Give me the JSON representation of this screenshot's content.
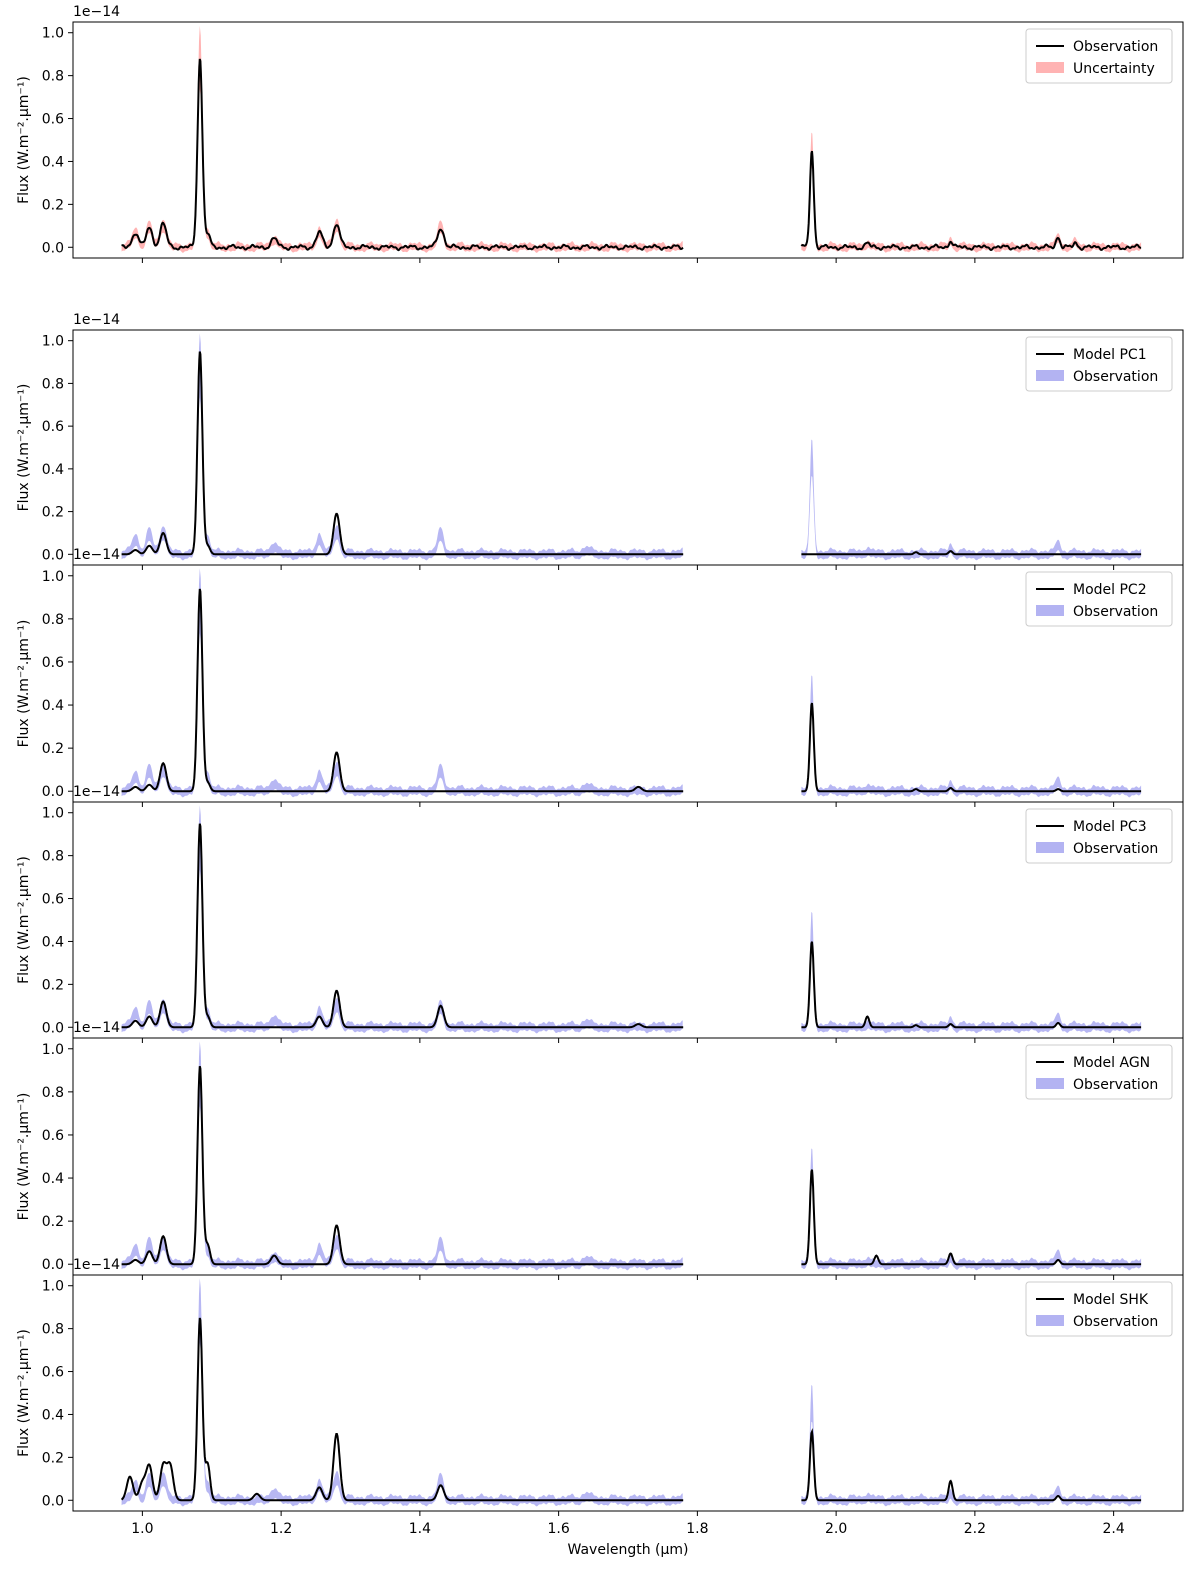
{
  "figure": {
    "x_axis_label": "Wavelength (μm)",
    "y_axis_label": "Flux (W.m⁻².μm⁻¹)",
    "offset_label": "1e−14"
  },
  "chart_data": [
    {
      "type": "line",
      "panel": 1,
      "ylim": [
        -0.05,
        1.05
      ],
      "xlim": [
        0.9,
        2.5
      ],
      "x_ticks": [
        1.0,
        1.2,
        1.4,
        1.6,
        1.8,
        2.0,
        2.2,
        2.4
      ],
      "x_tick_labels_shown": false,
      "y_ticks": [
        0.0,
        0.2,
        0.4,
        0.6,
        0.8,
        1.0
      ],
      "legend_position": "top-right",
      "line": {
        "name": "Observation",
        "color": "#000000",
        "peaks": [
          [
            0.99,
            0.07
          ],
          [
            1.01,
            0.09
          ],
          [
            1.03,
            0.11
          ],
          [
            1.083,
            0.88
          ],
          [
            1.094,
            0.06
          ],
          [
            1.19,
            0.04
          ],
          [
            1.255,
            0.07
          ],
          [
            1.28,
            0.11
          ],
          [
            1.43,
            0.09
          ],
          [
            1.965,
            0.45
          ],
          [
            2.045,
            0.02
          ],
          [
            2.165,
            0.03
          ],
          [
            2.32,
            0.05
          ],
          [
            2.345,
            0.02
          ]
        ]
      },
      "band": {
        "name": "Uncertainty",
        "color": "#ff9999",
        "halfwidth": 0.015
      }
    },
    {
      "type": "line",
      "panel": 2,
      "ylim": [
        -0.05,
        1.05
      ],
      "xlim": [
        0.9,
        2.5
      ],
      "x_ticks": [
        1.0,
        1.2,
        1.4,
        1.6,
        1.8,
        2.0,
        2.2,
        2.4
      ],
      "x_tick_labels_shown": false,
      "y_ticks": [
        0.0,
        0.2,
        0.4,
        0.6,
        0.8,
        1.0
      ],
      "legend_position": "top-right",
      "line": {
        "name": "Model PC1",
        "color": "#000000",
        "peaks": [
          [
            0.99,
            0.02
          ],
          [
            1.01,
            0.04
          ],
          [
            1.03,
            0.1
          ],
          [
            1.083,
            0.95
          ],
          [
            1.094,
            0.04
          ],
          [
            1.28,
            0.19
          ],
          [
            2.115,
            0.01
          ],
          [
            2.165,
            0.015
          ]
        ]
      },
      "band": {
        "name": "Observation",
        "color": "#9999ee",
        "halfwidth": 0.018
      }
    },
    {
      "type": "line",
      "panel": 3,
      "ylim": [
        -0.05,
        1.05
      ],
      "xlim": [
        0.9,
        2.5
      ],
      "x_ticks": [
        1.0,
        1.2,
        1.4,
        1.6,
        1.8,
        2.0,
        2.2,
        2.4
      ],
      "x_tick_labels_shown": false,
      "y_ticks": [
        0.0,
        0.2,
        0.4,
        0.6,
        0.8,
        1.0
      ],
      "legend_position": "top-right",
      "line": {
        "name": "Model PC2",
        "color": "#000000",
        "peaks": [
          [
            0.99,
            0.02
          ],
          [
            1.01,
            0.03
          ],
          [
            1.03,
            0.13
          ],
          [
            1.083,
            0.94
          ],
          [
            1.094,
            0.04
          ],
          [
            1.28,
            0.18
          ],
          [
            1.715,
            0.02
          ],
          [
            1.965,
            0.41
          ],
          [
            2.115,
            0.01
          ],
          [
            2.165,
            0.015
          ],
          [
            2.32,
            0.01
          ]
        ]
      },
      "band": {
        "name": "Observation",
        "color": "#9999ee",
        "halfwidth": 0.018
      }
    },
    {
      "type": "line",
      "panel": 4,
      "ylim": [
        -0.05,
        1.05
      ],
      "xlim": [
        0.9,
        2.5
      ],
      "x_ticks": [
        1.0,
        1.2,
        1.4,
        1.6,
        1.8,
        2.0,
        2.2,
        2.4
      ],
      "x_tick_labels_shown": false,
      "y_ticks": [
        0.0,
        0.2,
        0.4,
        0.6,
        0.8,
        1.0
      ],
      "legend_position": "top-right",
      "line": {
        "name": "Model PC3",
        "color": "#000000",
        "peaks": [
          [
            0.99,
            0.03
          ],
          [
            1.01,
            0.05
          ],
          [
            1.03,
            0.12
          ],
          [
            1.083,
            0.95
          ],
          [
            1.094,
            0.05
          ],
          [
            1.255,
            0.05
          ],
          [
            1.28,
            0.17
          ],
          [
            1.43,
            0.1
          ],
          [
            1.715,
            0.015
          ],
          [
            1.965,
            0.4
          ],
          [
            2.045,
            0.05
          ],
          [
            2.115,
            0.01
          ],
          [
            2.165,
            0.015
          ],
          [
            2.32,
            0.02
          ]
        ]
      },
      "band": {
        "name": "Observation",
        "color": "#9999ee",
        "halfwidth": 0.018
      }
    },
    {
      "type": "line",
      "panel": 5,
      "ylim": [
        -0.05,
        1.05
      ],
      "xlim": [
        0.9,
        2.5
      ],
      "x_ticks": [
        1.0,
        1.2,
        1.4,
        1.6,
        1.8,
        2.0,
        2.2,
        2.4
      ],
      "x_tick_labels_shown": false,
      "y_ticks": [
        0.0,
        0.2,
        0.4,
        0.6,
        0.8,
        1.0
      ],
      "legend_position": "top-right",
      "line": {
        "name": "Model AGN",
        "color": "#000000",
        "peaks": [
          [
            0.99,
            0.02
          ],
          [
            1.01,
            0.06
          ],
          [
            1.03,
            0.13
          ],
          [
            1.083,
            0.92
          ],
          [
            1.094,
            0.09
          ],
          [
            1.19,
            0.04
          ],
          [
            1.28,
            0.18
          ],
          [
            1.965,
            0.44
          ],
          [
            2.058,
            0.04
          ],
          [
            2.165,
            0.05
          ],
          [
            2.32,
            0.02
          ]
        ]
      },
      "band": {
        "name": "Observation",
        "color": "#9999ee",
        "halfwidth": 0.018
      }
    },
    {
      "type": "line",
      "panel": 6,
      "ylim": [
        -0.05,
        1.05
      ],
      "xlim": [
        0.9,
        2.5
      ],
      "x_ticks": [
        1.0,
        1.2,
        1.4,
        1.6,
        1.8,
        2.0,
        2.2,
        2.4
      ],
      "x_tick_labels": [
        "1.0",
        "1.2",
        "1.4",
        "1.6",
        "1.8",
        "2.0",
        "2.2",
        "2.4"
      ],
      "x_tick_labels_shown": true,
      "y_ticks": [
        0.0,
        0.2,
        0.4,
        0.6,
        0.8,
        1.0
      ],
      "legend_position": "top-right",
      "line": {
        "name": "Model SHK",
        "color": "#000000",
        "peaks": [
          [
            0.982,
            0.11
          ],
          [
            1.0,
            0.08
          ],
          [
            1.01,
            0.16
          ],
          [
            1.03,
            0.16
          ],
          [
            1.04,
            0.16
          ],
          [
            1.083,
            0.85
          ],
          [
            1.094,
            0.17
          ],
          [
            1.165,
            0.03
          ],
          [
            1.255,
            0.06
          ],
          [
            1.28,
            0.31
          ],
          [
            1.43,
            0.07
          ],
          [
            1.965,
            0.32
          ],
          [
            2.165,
            0.09
          ],
          [
            2.32,
            0.02
          ]
        ]
      },
      "band": {
        "name": "Observation",
        "color": "#9999ee",
        "halfwidth": 0.018
      }
    }
  ],
  "observation_reference": {
    "peaks": [
      [
        0.99,
        0.07
      ],
      [
        1.01,
        0.09
      ],
      [
        1.03,
        0.11
      ],
      [
        1.083,
        0.88
      ],
      [
        1.094,
        0.06
      ],
      [
        1.19,
        0.04
      ],
      [
        1.255,
        0.07
      ],
      [
        1.28,
        0.11
      ],
      [
        1.43,
        0.09
      ],
      [
        1.64,
        0.02
      ],
      [
        1.965,
        0.45
      ],
      [
        2.045,
        0.02
      ],
      [
        2.165,
        0.03
      ],
      [
        2.32,
        0.05
      ]
    ],
    "segments": [
      [
        0.97,
        1.78
      ],
      [
        1.95,
        2.44
      ]
    ]
  }
}
